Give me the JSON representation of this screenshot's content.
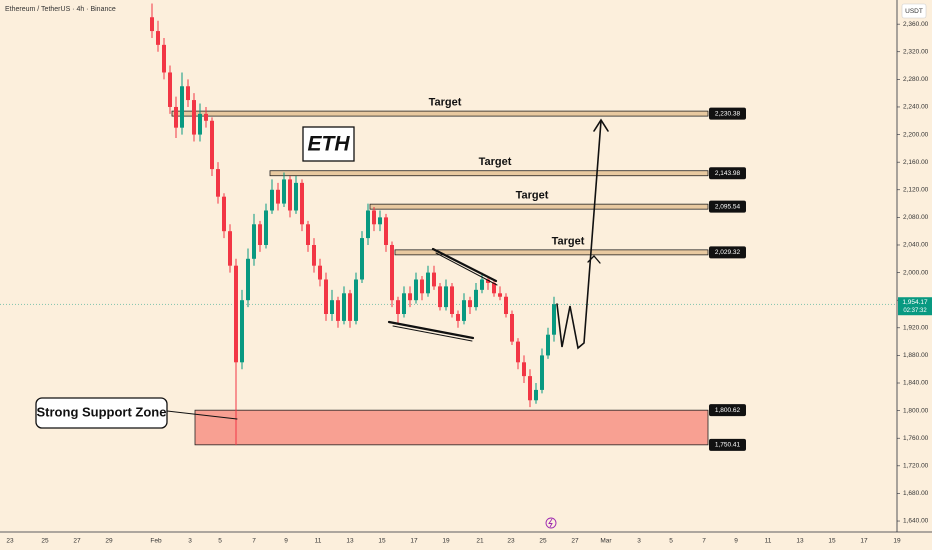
{
  "chart_data": {
    "type": "candlestick",
    "title": "Ethereum / TetherUS · 4h · Binance",
    "currency": "USDT",
    "annotation": "ETH",
    "colors": {
      "up": "#089981",
      "down": "#f23645"
    },
    "categories": [
      "23",
      "25",
      "27",
      "29",
      "Feb",
      "3",
      "5",
      "7",
      "9",
      "11",
      "13",
      "15",
      "17",
      "19",
      "21",
      "23",
      "25",
      "27",
      "Mar",
      "3",
      "5",
      "7",
      "9",
      "11",
      "13",
      "15",
      "17",
      "19"
    ],
    "series": {
      "open": [
        2370,
        2350,
        2330,
        2290,
        2240,
        2210,
        2270,
        2250,
        2200,
        2230,
        2220,
        2150,
        2110,
        2060,
        2010,
        1870,
        1960,
        2020,
        2070,
        2040,
        2090,
        2120,
        2100,
        2135,
        2090,
        2130,
        2070,
        2040,
        2010,
        1990,
        1940,
        1960,
        1930,
        1970,
        1930,
        1990,
        2050,
        2090,
        2070,
        2080,
        2040,
        1960,
        1940,
        1970,
        1960,
        1990,
        1970,
        2000,
        1980,
        1950,
        1980,
        1940,
        1930,
        1960,
        1950,
        1975,
        1990,
        1985,
        1970,
        1965,
        1940,
        1900,
        1870,
        1850,
        1815,
        1830,
        1880,
        1910
      ],
      "high": [
        2390,
        2365,
        2340,
        2300,
        2255,
        2290,
        2280,
        2260,
        2245,
        2240,
        2225,
        2160,
        2115,
        2070,
        2020,
        1975,
        2035,
        2085,
        2075,
        2100,
        2135,
        2130,
        2145,
        2140,
        2140,
        2135,
        2075,
        2050,
        2020,
        2000,
        1975,
        1965,
        1980,
        1975,
        2000,
        2060,
        2100,
        2095,
        2090,
        2085,
        2045,
        1965,
        1980,
        1980,
        2000,
        1995,
        2010,
        2010,
        1985,
        1990,
        1985,
        1945,
        1970,
        1965,
        1985,
        2000,
        1995,
        1990,
        1980,
        1970,
        1945,
        1905,
        1880,
        1860,
        1840,
        1890,
        1920,
        1965
      ],
      "low": [
        2340,
        2320,
        2280,
        2230,
        2195,
        2200,
        2240,
        2190,
        2190,
        2210,
        2140,
        2100,
        2050,
        2000,
        1750,
        1860,
        1950,
        2010,
        2030,
        2035,
        2085,
        2090,
        2095,
        2080,
        2085,
        2060,
        2030,
        2000,
        1980,
        1930,
        1930,
        1920,
        1925,
        1920,
        1925,
        1985,
        2040,
        2060,
        2060,
        2030,
        1950,
        1925,
        1935,
        1950,
        1955,
        1960,
        1965,
        1975,
        1945,
        1945,
        1935,
        1920,
        1925,
        1940,
        1945,
        1970,
        1975,
        1965,
        1960,
        1935,
        1895,
        1860,
        1840,
        1805,
        1810,
        1825,
        1875,
        1900
      ],
      "close": [
        2350,
        2330,
        2290,
        2240,
        2210,
        2270,
        2250,
        2200,
        2230,
        2220,
        2150,
        2110,
        2060,
        2010,
        1870,
        1960,
        2020,
        2070,
        2040,
        2090,
        2120,
        2100,
        2135,
        2090,
        2130,
        2070,
        2040,
        2010,
        1990,
        1940,
        1960,
        1930,
        1970,
        1930,
        1990,
        2050,
        2090,
        2070,
        2080,
        2040,
        1960,
        1940,
        1970,
        1960,
        1990,
        1970,
        2000,
        1980,
        1950,
        1980,
        1940,
        1930,
        1960,
        1950,
        1975,
        1990,
        1985,
        1970,
        1965,
        1940,
        1900,
        1870,
        1850,
        1815,
        1830,
        1880,
        1910,
        1954.17
      ]
    },
    "ylim": [
      1627,
      2395
    ],
    "yticks": [
      {
        "value": 2360,
        "label": "2,360.00"
      },
      {
        "value": 2320,
        "label": "2,320.00"
      },
      {
        "value": 2280,
        "label": "2,280.00"
      },
      {
        "value": 2240,
        "label": "2,240.00"
      },
      {
        "value": 2200,
        "label": "2,200.00"
      },
      {
        "value": 2160,
        "label": "2,160.00"
      },
      {
        "value": 2120,
        "label": "2,120.00"
      },
      {
        "value": 2080,
        "label": "2,080.00"
      },
      {
        "value": 2040,
        "label": "2,040.00"
      },
      {
        "value": 2000,
        "label": "2,000.00"
      },
      {
        "value": 1960,
        "label": "1,960.00"
      },
      {
        "value": 1920,
        "label": "1,920.00"
      },
      {
        "value": 1880,
        "label": "1,880.00"
      },
      {
        "value": 1840,
        "label": "1,840.00"
      },
      {
        "value": 1800,
        "label": "1,800.00"
      },
      {
        "value": 1760,
        "label": "1,760.00"
      },
      {
        "value": 1720,
        "label": "1,720.00"
      },
      {
        "value": 1680,
        "label": "1,680.00"
      },
      {
        "value": 1640,
        "label": "1,640.00"
      }
    ],
    "levels": [
      {
        "label": "Target",
        "value": 2230.38,
        "value_label": "2,230.38"
      },
      {
        "label": "Target",
        "value": 2143.98,
        "value_label": "2,143.98"
      },
      {
        "label": "Target",
        "value": 2095.54,
        "value_label": "2,095.54"
      },
      {
        "label": "Target",
        "value": 2029.32,
        "value_label": "2,029.32"
      }
    ],
    "support_zone": {
      "label": "Strong Support Zone",
      "high": 1800.62,
      "high_label": "1,800.62",
      "low": 1750.41,
      "low_label": "1,750.41"
    },
    "current_price": {
      "value": 1954.17,
      "label": "1,954.17",
      "countdown": "02:37:32"
    }
  }
}
